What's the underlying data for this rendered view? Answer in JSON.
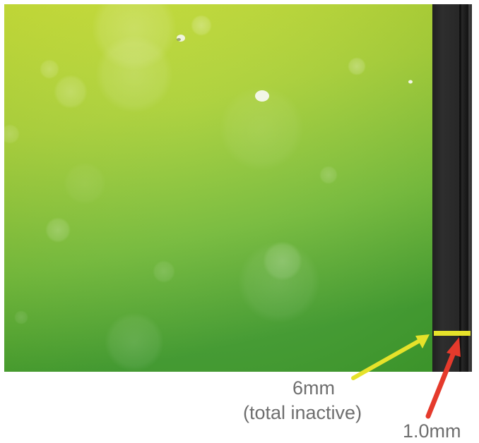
{
  "photo": {
    "subject": "phone-screen-edge-closeup",
    "screen_colors": [
      "#c8dc2c",
      "#a4cc30",
      "#6cb834",
      "#3e9a2c"
    ],
    "bezel_colors": [
      "#2b2b2b",
      "#1a1a1a"
    ]
  },
  "annotations": {
    "inactive_width": "6mm",
    "inactive_note": "(total inactive)",
    "bezel_width": "1.0mm",
    "marker_color": "#e6e22a",
    "inactive_arrow_color": "#e6e22a",
    "bezel_arrow_color": "#e53a2c"
  }
}
